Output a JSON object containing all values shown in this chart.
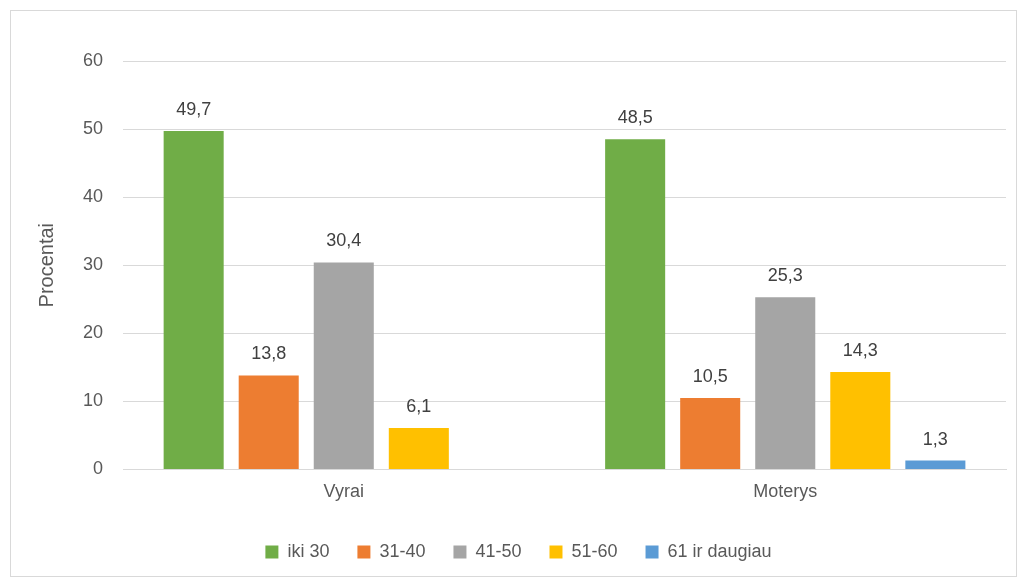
{
  "chart_data": {
    "type": "bar",
    "ylabel": "Procentai",
    "categories": [
      "Vyrai",
      "Moterys"
    ],
    "series": [
      {
        "name": "iki 30",
        "color": "#70ad47",
        "values": [
          49.7,
          48.5
        ],
        "value_labels": [
          "49,7",
          "48,5"
        ]
      },
      {
        "name": "31-40",
        "color": "#ed7d31",
        "values": [
          13.8,
          10.5
        ],
        "value_labels": [
          "13,8",
          "10,5"
        ]
      },
      {
        "name": "41-50",
        "color": "#a5a5a5",
        "values": [
          30.4,
          25.3
        ],
        "value_labels": [
          "30,4",
          "25,3"
        ]
      },
      {
        "name": "51-60",
        "color": "#ffc000",
        "values": [
          6.1,
          14.3
        ],
        "value_labels": [
          "6,1",
          "14,3"
        ]
      },
      {
        "name": "61 ir daugiau",
        "color": "#5b9bd5",
        "values": [
          null,
          1.3
        ],
        "value_labels": [
          null,
          "1,3"
        ]
      }
    ],
    "ylim": [
      0,
      60
    ],
    "yticks": [
      0,
      10,
      20,
      30,
      40,
      50,
      60
    ],
    "grid": "y",
    "legend": "bottom"
  }
}
